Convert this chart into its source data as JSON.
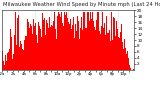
{
  "title": "Milwaukee Weather Wind Speed by Minute mph (Last 24 Hours)",
  "title_fontsize": 3.8,
  "bar_color": "#ff0000",
  "background_color": "#ffffff",
  "plot_bg_color": "#ffffff",
  "ylim": [
    0,
    20
  ],
  "yticks": [
    2,
    4,
    6,
    8,
    10,
    12,
    14,
    16,
    18,
    20
  ],
  "ytick_labels": [
    "2",
    "4",
    "6",
    "8",
    "10",
    "12",
    "14",
    "16",
    "18",
    "20"
  ],
  "ytick_fontsize": 3.0,
  "xtick_fontsize": 2.8,
  "n_points": 1440,
  "grid_color": "#bbbbbb",
  "n_grid_lines": 8,
  "seed": 99
}
